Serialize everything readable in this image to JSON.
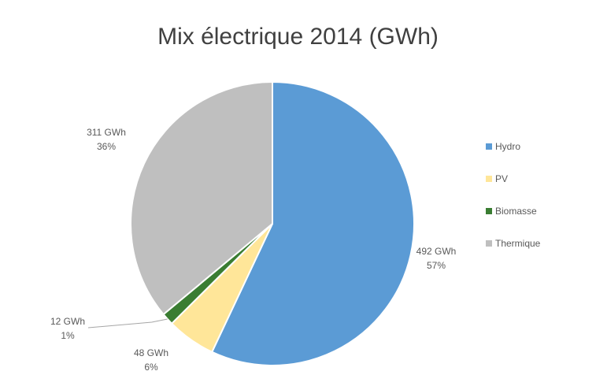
{
  "chart_data": {
    "type": "pie",
    "title": "Mix électrique 2014 (GWh)",
    "legend_position": "right",
    "series": [
      {
        "name": "Hydro",
        "value": 492,
        "value_label": "492 GWh",
        "percent_label": "57%",
        "color": "#5b9bd5"
      },
      {
        "name": "PV",
        "value": 48,
        "value_label": "48 GWh",
        "percent_label": "6%",
        "color": "#ffe699"
      },
      {
        "name": "Biomasse",
        "value": 12,
        "value_label": "12 GWh",
        "percent_label": "1%",
        "color": "#3a7d32"
      },
      {
        "name": "Thermique",
        "value": 311,
        "value_label": "311 GWh",
        "percent_label": "36%",
        "color": "#bfbfbf"
      }
    ]
  }
}
